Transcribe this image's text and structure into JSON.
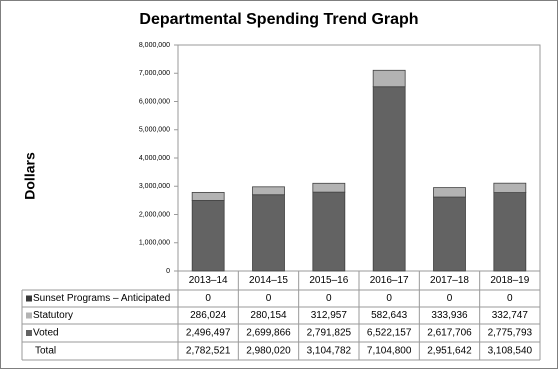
{
  "chart_data": {
    "type": "stacked_bar",
    "title": "Departmental Spending Trend Graph",
    "y_label": "Dollars",
    "categories": [
      "2013–14",
      "2014–15",
      "2015–16",
      "2016–17",
      "2017–18",
      "2018–19"
    ],
    "series": [
      {
        "name": "Sunset Programs – Anticipated",
        "color": "#3a3a3a",
        "values": [
          0,
          0,
          0,
          0,
          0,
          0
        ],
        "value_labels": [
          "0",
          "0",
          "0",
          "0",
          "0",
          "0"
        ]
      },
      {
        "name": "Statutory",
        "color": "#b3b3b3",
        "values": [
          286024,
          280154,
          312957,
          582643,
          333936,
          332747
        ],
        "value_labels": [
          "286,024",
          "280,154",
          "312,957",
          "582,643",
          "333,936",
          "332,747"
        ]
      },
      {
        "name": "Voted",
        "color": "#636363",
        "values": [
          2496497,
          2699866,
          2791825,
          6522157,
          2617706,
          2775793
        ],
        "value_labels": [
          "2,496,497",
          "2,699,866",
          "2,791,825",
          "6,522,157",
          "2,617,706",
          "2,775,793"
        ]
      }
    ],
    "total": {
      "name": "Total",
      "values": [
        2782521,
        2980020,
        3104782,
        7104800,
        2951642,
        3108540
      ],
      "value_labels": [
        "2,782,521",
        "2,980,020",
        "3,104,782",
        "7,104,800",
        "2,951,642",
        "3,108,540"
      ]
    },
    "stack_order": [
      "Voted",
      "Statutory",
      "Sunset Programs – Anticipated"
    ],
    "ylim": [
      0,
      8000000
    ],
    "yticks": [
      0,
      {
        "value": 1000000,
        "label": "1,000,000"
      },
      {
        "value": 2000000,
        "label": "2,000,000"
      },
      {
        "value": 3000000,
        "label": "3,000,000"
      },
      {
        "value": 4000000,
        "label": "4,000,000"
      },
      {
        "value": 5000000,
        "label": "5,000,000"
      },
      {
        "value": 6000000,
        "label": "6,000,000"
      },
      {
        "value": 7000000,
        "label": "7,000,000"
      },
      {
        "value": 8000000,
        "label": "8,000,000"
      }
    ],
    "grid": false
  }
}
